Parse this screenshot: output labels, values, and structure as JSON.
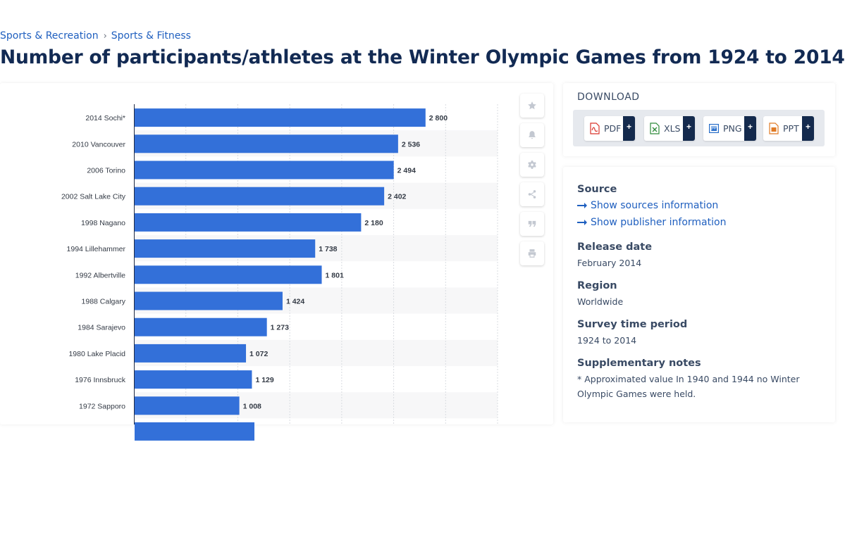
{
  "breadcrumb": {
    "items": [
      "Sports & Recreation",
      "Sports & Fitness"
    ],
    "separator": "›"
  },
  "page_title": "Number of participants/athletes at the Winter Olympic Games from 1924 to 2014",
  "chart_data": {
    "type": "bar",
    "orientation": "horizontal",
    "categories": [
      "2014 Sochi*",
      "2010 Vancouver",
      "2006 Torino",
      "2002 Salt Lake City",
      "1998 Nagano",
      "1994 Lillehammer",
      "1992 Albertville",
      "1988 Calgary",
      "1984 Sarajevo",
      "1980 Lake Placid",
      "1976 Innsbruck",
      "1972 Sapporo"
    ],
    "values": [
      2800,
      2536,
      2494,
      2402,
      2180,
      1738,
      1801,
      1424,
      1273,
      1072,
      1129,
      1008
    ],
    "value_labels": [
      "2 800",
      "2 536",
      "2 494",
      "2 402",
      "2 180",
      "1 738",
      "1 801",
      "1 424",
      "1 273",
      "1 072",
      "1 129",
      "1 008"
    ],
    "xlim": [
      0,
      3500
    ],
    "grid": true,
    "bar_color": "#3370d9",
    "title": "",
    "xlabel": "",
    "ylabel": ""
  },
  "tools": {
    "icons": [
      "star-icon",
      "bell-icon",
      "gear-icon",
      "share-icon",
      "quote-icon",
      "print-icon"
    ]
  },
  "download": {
    "title": "DOWNLOAD",
    "buttons": [
      {
        "label": "PDF",
        "icon": "pdf-file-icon",
        "color": "#d9342b"
      },
      {
        "label": "XLS",
        "icon": "xls-file-icon",
        "color": "#2e8b3a"
      },
      {
        "label": "PNG",
        "icon": "png-file-icon",
        "color": "#2a6fc9"
      },
      {
        "label": "PPT",
        "icon": "ppt-file-icon",
        "color": "#e07b26"
      }
    ],
    "plus": "+"
  },
  "info": {
    "source_heading": "Source",
    "show_sources": "Show sources information",
    "show_publisher": "Show publisher information",
    "release_heading": "Release date",
    "release_value": "February 2014",
    "region_heading": "Region",
    "region_value": "Worldwide",
    "survey_heading": "Survey time period",
    "survey_value": "1924 to 2014",
    "notes_heading": "Supplementary notes",
    "notes_value": "* Approximated value In 1940 and 1944 no Winter Olympic Games were held."
  }
}
